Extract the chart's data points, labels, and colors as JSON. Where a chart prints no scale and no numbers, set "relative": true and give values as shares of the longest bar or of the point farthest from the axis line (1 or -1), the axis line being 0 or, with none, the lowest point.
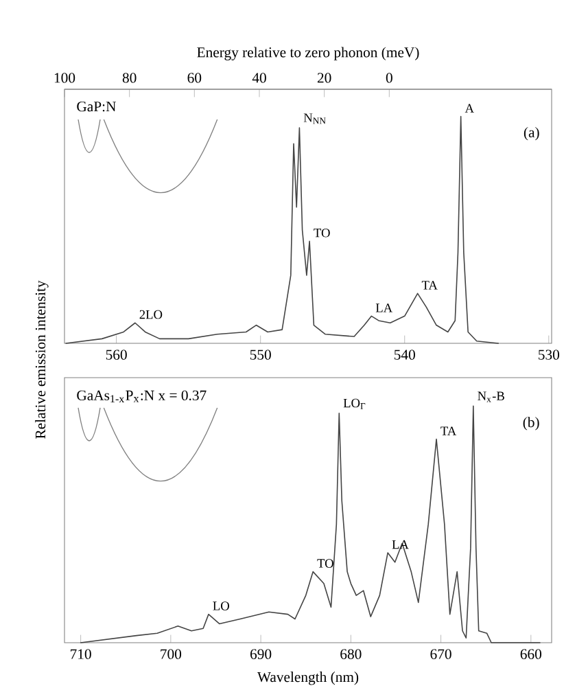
{
  "chart_data": [
    {
      "type": "line",
      "relative": true,
      "ylabel": "Relative emission intensity",
      "x2label": "Energy relative to zero phonon (meV)",
      "xlim": [
        563.6,
        529.8
      ],
      "xticks": [
        560,
        550,
        540,
        530
      ],
      "x2lim": [
        100,
        -50
      ],
      "x2ticks": [
        100,
        80,
        60,
        40,
        20,
        0
      ],
      "series": [
        {
          "color": "#444444",
          "x": [
            563.5,
            561,
            559.5,
            558.7,
            558,
            557,
            555,
            553,
            551,
            550.3,
            549.5,
            548.5,
            547.9,
            547.7,
            547.5,
            547.3,
            547.1,
            546.8,
            546.6,
            546.3,
            545.5,
            543.5,
            542.8,
            542.3,
            541.8,
            541,
            540,
            539.1,
            538.5,
            537.8,
            537,
            536.5,
            536.3,
            536.1,
            535.9,
            535.6,
            535,
            533.5
          ],
          "values": [
            0.0,
            0.02,
            0.05,
            0.09,
            0.05,
            0.02,
            0.02,
            0.04,
            0.05,
            0.08,
            0.05,
            0.06,
            0.3,
            0.88,
            0.6,
            0.95,
            0.5,
            0.3,
            0.45,
            0.08,
            0.04,
            0.03,
            0.08,
            0.12,
            0.1,
            0.09,
            0.12,
            0.22,
            0.16,
            0.08,
            0.05,
            0.1,
            0.4,
            1.0,
            0.4,
            0.05,
            0.01,
            0.0
          ]
        }
      ],
      "annotations": [
        "GaP:N",
        "(a)",
        {
          "text": "2LO",
          "x": 558.7,
          "y": 0.09
        },
        {
          "text": "N$_{NN}$",
          "x": 547.3,
          "y": 0.95
        },
        {
          "text": "TO",
          "x": 546.6,
          "y": 0.45
        },
        {
          "text": "LA",
          "x": 542.3,
          "y": 0.12
        },
        {
          "text": "TA",
          "x": 539.1,
          "y": 0.22
        },
        {
          "text": "A",
          "x": 536.1,
          "y": 1.0
        }
      ]
    },
    {
      "type": "line",
      "relative": true,
      "xlabel": "Wavelength (nm)",
      "xlim": [
        711.8,
        657.7
      ],
      "xticks": [
        710,
        700,
        690,
        680,
        670,
        660
      ],
      "series": [
        {
          "color": "#444444",
          "x": [
            710,
            703.8,
            701.5,
            699.2,
            697.7,
            696.4,
            695.8,
            694.6,
            692.3,
            689.1,
            687,
            686.2,
            685,
            684.2,
            683,
            682.2,
            681.6,
            681.3,
            681.0,
            680.7,
            680.4,
            680,
            679.4,
            678.6,
            677.8,
            676.8,
            675.9,
            675.1,
            674.3,
            673.3,
            672.5,
            671.4,
            670.5,
            669.6,
            669,
            668.2,
            667.6,
            667.2,
            666.7,
            666.4,
            666.1,
            665.8,
            664.9,
            664.4,
            659
          ],
          "values": [
            0.0,
            0.03,
            0.04,
            0.07,
            0.05,
            0.06,
            0.12,
            0.08,
            0.1,
            0.13,
            0.12,
            0.1,
            0.2,
            0.3,
            0.25,
            0.15,
            0.5,
            0.97,
            0.6,
            0.45,
            0.3,
            0.25,
            0.2,
            0.22,
            0.11,
            0.2,
            0.38,
            0.34,
            0.42,
            0.3,
            0.17,
            0.5,
            0.86,
            0.5,
            0.12,
            0.3,
            0.05,
            0.02,
            0.4,
            1.0,
            0.4,
            0.05,
            0.04,
            0.0,
            0.0
          ]
        }
      ],
      "annotations": [
        "GaAs$_{1-x}$P$_{x}$:N  x = 0.37",
        "(b)",
        {
          "text": "LO",
          "x": 695.8,
          "y": 0.12
        },
        {
          "text": "TO",
          "x": 684.2,
          "y": 0.3
        },
        {
          "text": "LO$_{Γ}$",
          "x": 681.3,
          "y": 0.97
        },
        {
          "text": "LA",
          "x": 675.9,
          "y": 0.38
        },
        {
          "text": "TA",
          "x": 670.5,
          "y": 0.86
        },
        {
          "text": "N$_{x}$-B",
          "x": 666.4,
          "y": 1.0
        }
      ]
    }
  ]
}
